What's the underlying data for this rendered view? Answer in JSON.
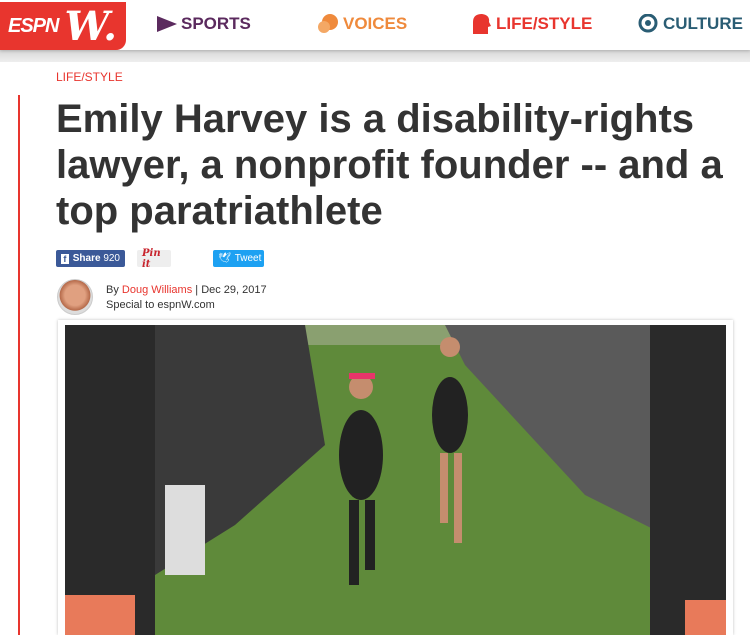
{
  "header": {
    "logo": "espnW",
    "nav": [
      {
        "label": "SPORTS",
        "color": "#5b2a5e",
        "icon": "pennant-icon"
      },
      {
        "label": "VOICES",
        "color": "#ef8a3c",
        "icon": "speech-bubbles-icon"
      },
      {
        "label": "LIFE/STYLE",
        "color": "#e8352e",
        "icon": "profile-head-icon"
      },
      {
        "label": "CULTURE",
        "color": "#2a5d74",
        "icon": "globe-star-icon"
      }
    ]
  },
  "article": {
    "category": "LIFE/STYLE",
    "title": "Emily Harvey is a disability-rights lawyer, a nonprofit founder -- and a top paratriathlete",
    "share": {
      "facebook_label": "Share",
      "facebook_count": "920",
      "pinterest_label": "Pin it",
      "twitter_label": "Tweet"
    },
    "byline": {
      "prefix": "By",
      "author": "Doug Williams",
      "separator": "|",
      "date": "Dec 29, 2017",
      "note": "Special to espnW.com"
    }
  },
  "colors": {
    "accent": "#e8352e",
    "facebook": "#3b5998",
    "twitter": "#1da1f2"
  }
}
